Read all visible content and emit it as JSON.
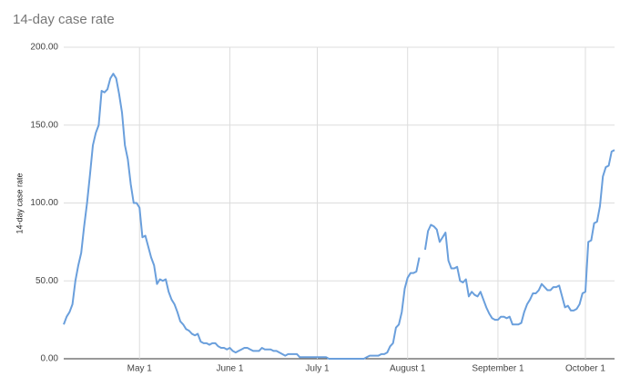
{
  "chart_data": {
    "type": "line",
    "title": "14-day case rate",
    "y_label": "14-day case rate",
    "x": [
      "04-05",
      "04-06",
      "04-07",
      "04-08",
      "04-09",
      "04-10",
      "04-11",
      "04-12",
      "04-13",
      "04-14",
      "04-15",
      "04-16",
      "04-17",
      "04-18",
      "04-19",
      "04-20",
      "04-21",
      "04-22",
      "04-23",
      "04-24",
      "04-25",
      "04-26",
      "04-27",
      "04-28",
      "04-29",
      "04-30",
      "05-01",
      "05-02",
      "05-03",
      "05-04",
      "05-05",
      "05-06",
      "05-07",
      "05-08",
      "05-09",
      "05-10",
      "05-11",
      "05-12",
      "05-13",
      "05-14",
      "05-15",
      "05-16",
      "05-17",
      "05-18",
      "05-19",
      "05-20",
      "05-21",
      "05-22",
      "05-23",
      "05-24",
      "05-25",
      "05-26",
      "05-27",
      "05-28",
      "05-29",
      "05-30",
      "05-31",
      "06-01",
      "06-02",
      "06-03",
      "06-04",
      "06-05",
      "06-06",
      "06-07",
      "06-08",
      "06-09",
      "06-10",
      "06-11",
      "06-12",
      "06-13",
      "06-14",
      "06-15",
      "06-16",
      "06-17",
      "06-18",
      "06-19",
      "06-20",
      "06-21",
      "06-22",
      "06-23",
      "06-24",
      "06-25",
      "06-26",
      "06-27",
      "06-28",
      "06-29",
      "06-30",
      "07-01",
      "07-02",
      "07-03",
      "07-04",
      "07-05",
      "07-06",
      "07-07",
      "07-08",
      "07-09",
      "07-10",
      "07-11",
      "07-12",
      "07-13",
      "07-14",
      "07-15",
      "07-16",
      "07-17",
      "07-18",
      "07-19",
      "07-20",
      "07-21",
      "07-22",
      "07-23",
      "07-24",
      "07-25",
      "07-26",
      "07-27",
      "07-28",
      "07-29",
      "07-30",
      "07-31",
      "08-01",
      "08-02",
      "08-03",
      "08-04",
      "08-05",
      "08-06",
      "08-07",
      "08-08",
      "08-09",
      "08-10",
      "08-11",
      "08-12",
      "08-13",
      "08-14",
      "08-15",
      "08-16",
      "08-17",
      "08-18",
      "08-19",
      "08-20",
      "08-21",
      "08-22",
      "08-23",
      "08-24",
      "08-25",
      "08-26",
      "08-27",
      "08-28",
      "08-29",
      "08-30",
      "08-31",
      "09-01",
      "09-02",
      "09-03",
      "09-04",
      "09-05",
      "09-06",
      "09-07",
      "09-08",
      "09-09",
      "09-10",
      "09-11",
      "09-12",
      "09-13",
      "09-14",
      "09-15",
      "09-16",
      "09-17",
      "09-18",
      "09-19",
      "09-20",
      "09-21",
      "09-22",
      "09-23",
      "09-24",
      "09-25",
      "09-26",
      "09-27",
      "09-28",
      "09-29",
      "09-30",
      "10-01",
      "10-02",
      "10-03",
      "10-04",
      "10-05",
      "10-06",
      "10-07",
      "10-08",
      "10-09",
      "10-10",
      "10-11"
    ],
    "series": [
      {
        "name": "14-day case rate",
        "color": "#6a9fdc",
        "values": [
          22,
          27,
          30,
          35,
          50,
          60,
          68,
          85,
          100,
          118,
          137,
          145,
          150,
          172,
          171,
          173,
          180,
          183,
          180,
          170,
          158,
          137,
          128,
          112,
          100,
          100,
          97,
          78,
          79,
          72,
          65,
          60,
          48,
          51,
          50,
          51,
          43,
          38,
          35,
          30,
          24,
          22,
          19,
          18,
          16,
          15,
          16,
          11,
          10,
          10,
          9,
          10,
          10,
          8,
          7,
          7,
          6,
          7,
          5,
          4,
          5,
          6,
          7,
          7,
          6,
          5,
          5,
          5,
          7,
          6,
          6,
          6,
          5,
          5,
          4,
          3,
          2,
          3,
          3,
          3,
          3,
          1,
          1,
          1,
          1,
          1,
          1,
          1,
          1,
          1,
          1,
          0,
          0,
          0,
          0,
          0,
          0,
          0,
          0,
          0,
          0,
          0,
          0,
          0,
          1,
          2,
          2,
          2,
          2,
          3,
          3,
          4,
          8,
          10,
          20,
          22,
          30,
          45,
          52,
          55,
          55,
          56,
          65,
          null,
          70,
          82,
          86,
          85,
          83,
          75,
          78,
          81,
          63,
          58,
          58,
          59,
          50,
          49,
          51,
          40,
          43,
          41,
          40,
          43,
          38,
          33,
          29,
          26,
          25,
          25,
          27,
          27,
          26,
          27,
          22,
          22,
          22,
          23,
          30,
          35,
          38,
          42,
          42,
          44,
          48,
          46,
          44,
          44,
          46,
          46,
          47,
          40,
          33,
          34,
          31,
          31,
          32,
          35,
          42,
          43,
          75,
          76,
          87,
          88,
          98,
          117,
          123,
          124,
          133,
          134
        ]
      }
    ],
    "xlim": [
      "04-05",
      "10-11"
    ],
    "xticks": [
      {
        "value": "05-01",
        "label": "May 1"
      },
      {
        "value": "06-01",
        "label": "June 1"
      },
      {
        "value": "07-01",
        "label": "July 1"
      },
      {
        "value": "08-01",
        "label": "August 1"
      },
      {
        "value": "09-01",
        "label": "September 1"
      },
      {
        "value": "10-01",
        "label": "October 1"
      }
    ],
    "ylim": [
      0,
      200
    ],
    "yticks": [
      {
        "value": 0,
        "label": "0.00"
      },
      {
        "value": 50,
        "label": "50.00"
      },
      {
        "value": 100,
        "label": "100.00"
      },
      {
        "value": 150,
        "label": "150.00"
      },
      {
        "value": 200,
        "label": "200.00"
      }
    ],
    "grid": true
  }
}
